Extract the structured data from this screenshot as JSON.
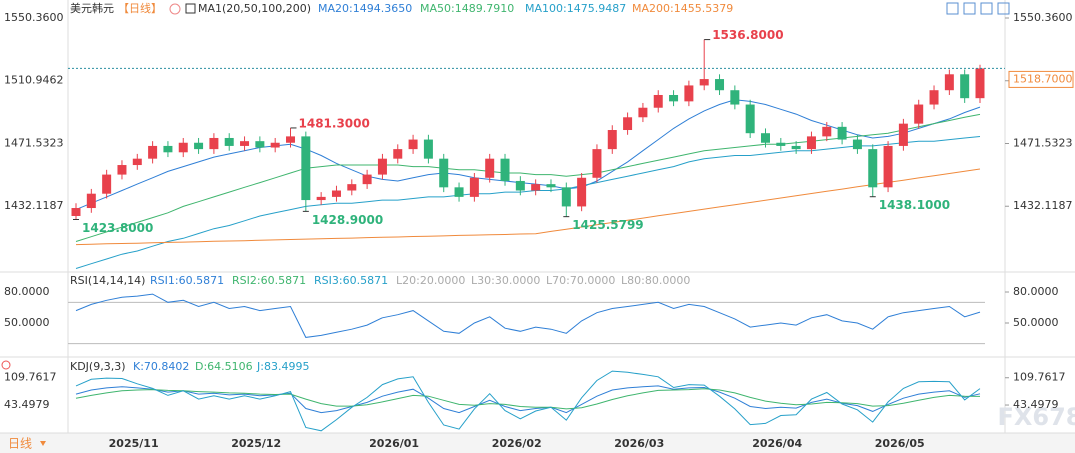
{
  "header": {
    "period_button": "日线",
    "watermark": "FX678"
  },
  "chart_data": [
    {
      "type": "candlestick",
      "title": "美元韩元",
      "period": "【日线】",
      "indicator": "MA1(20,50,100,200)",
      "up_color": "#e8414c",
      "down_color": "#2fb37b",
      "categories": [
        null,
        null,
        "2025/11",
        null,
        null,
        null,
        null,
        null,
        null,
        null,
        "2025/12",
        null,
        null,
        null,
        null,
        null,
        null,
        null,
        null,
        "2026/01",
        null,
        null,
        null,
        null,
        null,
        null,
        null,
        "2026/02",
        null,
        null,
        null,
        null,
        null,
        null,
        null,
        "2026/03",
        null,
        null,
        null,
        null,
        null,
        null,
        null,
        null,
        "2026/04",
        null,
        null,
        null,
        null,
        null,
        null,
        null,
        "2026/05",
        null,
        null,
        null,
        null,
        null,
        null,
        null
      ],
      "open": [
        1426,
        1431,
        1440,
        1452,
        1458,
        1462,
        1470,
        1466,
        1472,
        1468,
        1475,
        1470,
        1473,
        1469,
        1472,
        1476,
        1436,
        1438,
        1442,
        1446,
        1452,
        1462,
        1468,
        1474,
        1462,
        1444,
        1438,
        1450,
        1462,
        1448,
        1442,
        1446,
        1444,
        1432,
        1450,
        1468,
        1480,
        1488,
        1494,
        1502,
        1498,
        1508,
        1512,
        1505,
        1496,
        1478,
        1472,
        1470,
        1468,
        1476,
        1482,
        1474,
        1468,
        1444,
        1470,
        1484,
        1496,
        1505,
        1515,
        1500
      ],
      "high": [
        1434,
        1443,
        1455,
        1461,
        1465,
        1473,
        1473,
        1475,
        1475,
        1478,
        1478,
        1476,
        1476,
        1475,
        1481.3,
        1479,
        1441,
        1445,
        1449,
        1455,
        1465,
        1471,
        1477,
        1477,
        1465,
        1447,
        1453,
        1465,
        1465,
        1451,
        1449,
        1449,
        1447,
        1453,
        1471,
        1483,
        1491,
        1497,
        1505,
        1505,
        1511,
        1536.8,
        1515,
        1508,
        1499,
        1481,
        1475,
        1473,
        1479,
        1485,
        1485,
        1477,
        1471,
        1473,
        1487,
        1499,
        1508,
        1518,
        1518,
        1521
      ],
      "low": [
        1423.8,
        1428,
        1437,
        1449,
        1455,
        1459,
        1463,
        1463,
        1465,
        1465,
        1467,
        1467,
        1466,
        1466,
        1469,
        1428.9,
        1433,
        1435,
        1439,
        1443,
        1449,
        1459,
        1465,
        1459,
        1441,
        1435,
        1435,
        1447,
        1445,
        1439,
        1439,
        1441,
        1425.5799,
        1429,
        1447,
        1465,
        1477,
        1485,
        1491,
        1495,
        1495,
        1505,
        1502,
        1493,
        1475,
        1469,
        1467,
        1465,
        1465,
        1473,
        1471,
        1465,
        1438.1,
        1441,
        1467,
        1481,
        1493,
        1502,
        1497,
        1497
      ],
      "close": [
        1431,
        1440,
        1452,
        1458,
        1462,
        1470,
        1466,
        1472,
        1468,
        1475,
        1470,
        1473,
        1469,
        1472,
        1476,
        1436,
        1438,
        1442,
        1446,
        1452,
        1462,
        1468,
        1474,
        1462,
        1444,
        1438,
        1450,
        1462,
        1448,
        1442,
        1446,
        1444,
        1432,
        1450,
        1468,
        1480,
        1488,
        1494,
        1502,
        1498,
        1508,
        1512,
        1505,
        1496,
        1478,
        1472,
        1470,
        1468,
        1476,
        1482,
        1474,
        1468,
        1444,
        1470,
        1484,
        1496,
        1505,
        1515,
        1500,
        1518.7
      ],
      "high_labels": [
        null,
        null,
        null,
        null,
        null,
        null,
        null,
        null,
        null,
        null,
        null,
        null,
        null,
        null,
        "1481.3000",
        null,
        null,
        null,
        null,
        null,
        null,
        null,
        null,
        null,
        null,
        null,
        null,
        null,
        null,
        null,
        null,
        null,
        null,
        null,
        null,
        null,
        null,
        null,
        null,
        null,
        null,
        "1536.8000",
        null,
        null,
        null,
        null,
        null,
        null,
        null,
        null,
        null,
        null,
        null,
        null,
        null,
        null,
        null,
        null,
        null,
        null
      ],
      "low_labels": [
        "1423.8000",
        null,
        null,
        null,
        null,
        null,
        null,
        null,
        null,
        null,
        null,
        null,
        null,
        null,
        null,
        "1428.9000",
        null,
        null,
        null,
        null,
        null,
        null,
        null,
        null,
        null,
        null,
        null,
        null,
        null,
        null,
        null,
        null,
        "1425.5799",
        null,
        null,
        null,
        null,
        null,
        null,
        null,
        null,
        null,
        null,
        null,
        null,
        null,
        null,
        null,
        null,
        null,
        null,
        null,
        "1438.1000",
        null,
        null,
        null,
        null,
        null,
        null,
        null
      ],
      "ma_series": [
        {
          "name": "MA20:1494.3650",
          "color": "#2f7fd6",
          "values": [
            1430,
            1434,
            1438,
            1442,
            1446,
            1450,
            1454,
            1457,
            1460,
            1463,
            1465,
            1467,
            1469,
            1470,
            1471,
            1468,
            1464,
            1459,
            1455,
            1451,
            1449,
            1448,
            1450,
            1452,
            1453,
            1452,
            1450,
            1449,
            1448,
            1447,
            1446,
            1445,
            1443,
            1444,
            1448,
            1454,
            1460,
            1467,
            1474,
            1481,
            1487,
            1492,
            1496,
            1499,
            1498,
            1496,
            1493,
            1490,
            1486,
            1483,
            1480,
            1477,
            1475,
            1476,
            1478,
            1481,
            1484,
            1487,
            1491,
            1494.365
          ]
        },
        {
          "name": "MA50:1489.7910",
          "color": "#3fb56e",
          "values": [
            1410,
            1413,
            1416,
            1419,
            1422,
            1425,
            1428,
            1432,
            1435,
            1438,
            1441,
            1444,
            1447,
            1450,
            1453,
            1456,
            1457,
            1458,
            1458,
            1458,
            1458,
            1458,
            1457,
            1457,
            1456,
            1455,
            1455,
            1454,
            1453,
            1453,
            1452,
            1452,
            1451,
            1452,
            1453,
            1455,
            1457,
            1459,
            1461,
            1463,
            1465,
            1467,
            1468,
            1469,
            1470,
            1471,
            1471,
            1472,
            1473,
            1474,
            1475,
            1476,
            1477,
            1478,
            1480,
            1482,
            1484,
            1486,
            1488,
            1489.791
          ]
        },
        {
          "name": "MA100:1475.9487",
          "color": "#26a0c9",
          "values": [
            1393,
            1396,
            1399,
            1402,
            1404,
            1407,
            1410,
            1412,
            1415,
            1418,
            1420,
            1423,
            1426,
            1428,
            1430,
            1432,
            1433,
            1434,
            1434,
            1435,
            1436,
            1436,
            1437,
            1438,
            1438,
            1439,
            1440,
            1440,
            1441,
            1441,
            1442,
            1442,
            1443,
            1445,
            1447,
            1449,
            1451,
            1453,
            1455,
            1457,
            1460,
            1462,
            1463,
            1464,
            1464,
            1465,
            1466,
            1467,
            1467,
            1468,
            1469,
            1470,
            1470,
            1471,
            1472,
            1473,
            1473,
            1474,
            1475,
            1475.9487
          ]
        },
        {
          "name": "MA200:1455.5379",
          "color": "#f08a3c",
          "values": [
            1408.0,
            1408.2,
            1408.5,
            1408.7,
            1408.9,
            1409.2,
            1409.4,
            1409.6,
            1409.8,
            1410.1,
            1410.3,
            1410.5,
            1410.8,
            1411.0,
            1411.2,
            1411.5,
            1411.7,
            1411.9,
            1412.1,
            1412.4,
            1412.6,
            1412.8,
            1413.1,
            1413.3,
            1413.5,
            1413.8,
            1414.0,
            1414.2,
            1414.4,
            1414.7,
            1414.9,
            1416.3,
            1417.7,
            1419.1,
            1420.5,
            1421.9,
            1423.3,
            1424.7,
            1426.1,
            1427.5,
            1428.9,
            1430.3,
            1431.7,
            1433.1,
            1434.5,
            1435.9,
            1437.3,
            1438.7,
            1440.1,
            1441.5,
            1442.9,
            1444.3,
            1445.7,
            1447.1,
            1448.5,
            1449.9,
            1451.3,
            1452.7,
            1454.1,
            1455.5379
          ]
        }
      ],
      "last_price": {
        "value": 1518.7,
        "label": "1518.7000"
      },
      "ylim": [
        1392.07,
        1550.36
      ],
      "yticks": [
        {
          "value": 1550.36,
          "label": "1550.3600"
        },
        {
          "value": 1510.9462,
          "label": "1510.9462"
        },
        {
          "value": 1471.5323,
          "label": "1471.5323"
        },
        {
          "value": 1432.1187,
          "label": "1432.1187"
        }
      ]
    },
    {
      "type": "line",
      "title": "RSI(14,14,14)",
      "series": [
        {
          "name": "RSI1:60.5871",
          "color": "#2f7fd6",
          "values": [
            62,
            68,
            72,
            75,
            76,
            78,
            70,
            72,
            66,
            70,
            64,
            66,
            62,
            64,
            66,
            36,
            38,
            41,
            44,
            48,
            55,
            58,
            62,
            52,
            42,
            40,
            50,
            56,
            45,
            42,
            46,
            44,
            40,
            52,
            60,
            64,
            66,
            68,
            70,
            64,
            68,
            66,
            60,
            54,
            46,
            48,
            50,
            48,
            55,
            58,
            52,
            50,
            44,
            56,
            60,
            62,
            64,
            66,
            56,
            60.5871
          ]
        },
        {
          "name": "RSI2:60.5871",
          "color": "#3fb56e"
        },
        {
          "name": "RSI3:60.5871",
          "color": "#26a0c9"
        }
      ],
      "levels": [
        "L20:20.0000",
        "L30:30.0000",
        "L70:70.0000",
        "L80:80.0000"
      ],
      "level_lines": [
        30,
        70
      ],
      "ylim": [
        19,
        89.7
      ],
      "yticks": [
        {
          "value": 80,
          "label": "80.0000"
        },
        {
          "value": 50,
          "label": "50.0000"
        }
      ]
    },
    {
      "type": "line",
      "title": "KDJ(9,3,3)",
      "series": [
        {
          "name": "K:70.8402",
          "color": "#2f7fd6",
          "values": [
            70,
            80,
            85,
            88,
            85,
            82,
            75,
            78,
            70,
            72,
            68,
            70,
            66,
            68,
            72,
            35,
            25,
            30,
            40,
            50,
            65,
            75,
            82,
            60,
            35,
            25,
            40,
            55,
            40,
            30,
            35,
            38,
            25,
            45,
            65,
            80,
            85,
            88,
            90,
            82,
            85,
            86,
            75,
            60,
            40,
            35,
            38,
            36,
            50,
            58,
            48,
            42,
            28,
            45,
            60,
            70,
            75,
            78,
            62,
            70.8402
          ]
        },
        {
          "name": "D:64.5106",
          "color": "#3fb56e",
          "values": [
            60,
            67,
            73,
            78,
            80,
            81,
            79,
            78,
            76,
            75,
            73,
            72,
            70,
            69,
            70,
            58,
            47,
            41,
            41,
            44,
            51,
            59,
            67,
            65,
            55,
            45,
            43,
            47,
            45,
            40,
            38,
            38,
            34,
            37,
            46,
            57,
            66,
            73,
            79,
            80,
            81,
            83,
            80,
            73,
            62,
            53,
            48,
            44,
            46,
            50,
            49,
            47,
            41,
            42,
            48,
            55,
            62,
            67,
            65,
            64.5106
          ]
        },
        {
          "name": "J:83.4995",
          "color": "#26a0c9",
          "values": [
            90,
            106,
            109,
            108,
            95,
            84,
            67,
            78,
            58,
            66,
            58,
            66,
            58,
            66,
            76,
            -11,
            -19,
            8,
            38,
            62,
            93,
            107,
            112,
            50,
            -5,
            -15,
            34,
            71,
            30,
            10,
            29,
            38,
            7,
            61,
            103,
            126,
            123,
            118,
            112,
            86,
            93,
            92,
            65,
            34,
            -4,
            -1,
            18,
            20,
            58,
            74,
            46,
            32,
            2,
            51,
            84,
            100,
            101,
            100,
            56,
            83.4995
          ]
        }
      ],
      "ylim": [
        -22,
        148
      ],
      "yticks": [
        {
          "value": 109.7617,
          "label": "109.7617"
        },
        {
          "value": 43.4979,
          "label": "43.4979"
        }
      ]
    }
  ]
}
